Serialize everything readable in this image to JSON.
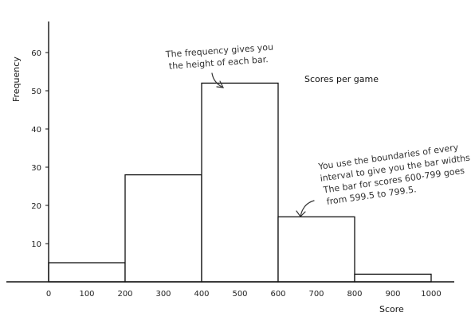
{
  "chart_data": {
    "type": "bar",
    "title": "Scores per game",
    "xlabel": "Score",
    "ylabel": "Frequency",
    "bins": [
      {
        "from": 0,
        "to": 200,
        "value": 5
      },
      {
        "from": 200,
        "to": 400,
        "value": 28
      },
      {
        "from": 400,
        "to": 600,
        "value": 52
      },
      {
        "from": 600,
        "to": 800,
        "value": 17
      },
      {
        "from": 800,
        "to": 1000,
        "value": 2
      }
    ],
    "xticks": [
      0,
      100,
      200,
      300,
      400,
      500,
      600,
      700,
      800,
      900,
      1000
    ],
    "yticks": [
      10,
      20,
      30,
      40,
      50,
      60
    ],
    "xlim": [
      0,
      1000
    ],
    "ylim": [
      0,
      70
    ],
    "annotations": [
      {
        "lines": [
          "The frequency gives you",
          "the height of each bar."
        ]
      },
      {
        "lines": [
          "You use the boundaries of every",
          "interval to give you the bar widths.",
          "The bar for scores 600-799 goes",
          "from 599.5 to 799.5."
        ]
      }
    ]
  }
}
